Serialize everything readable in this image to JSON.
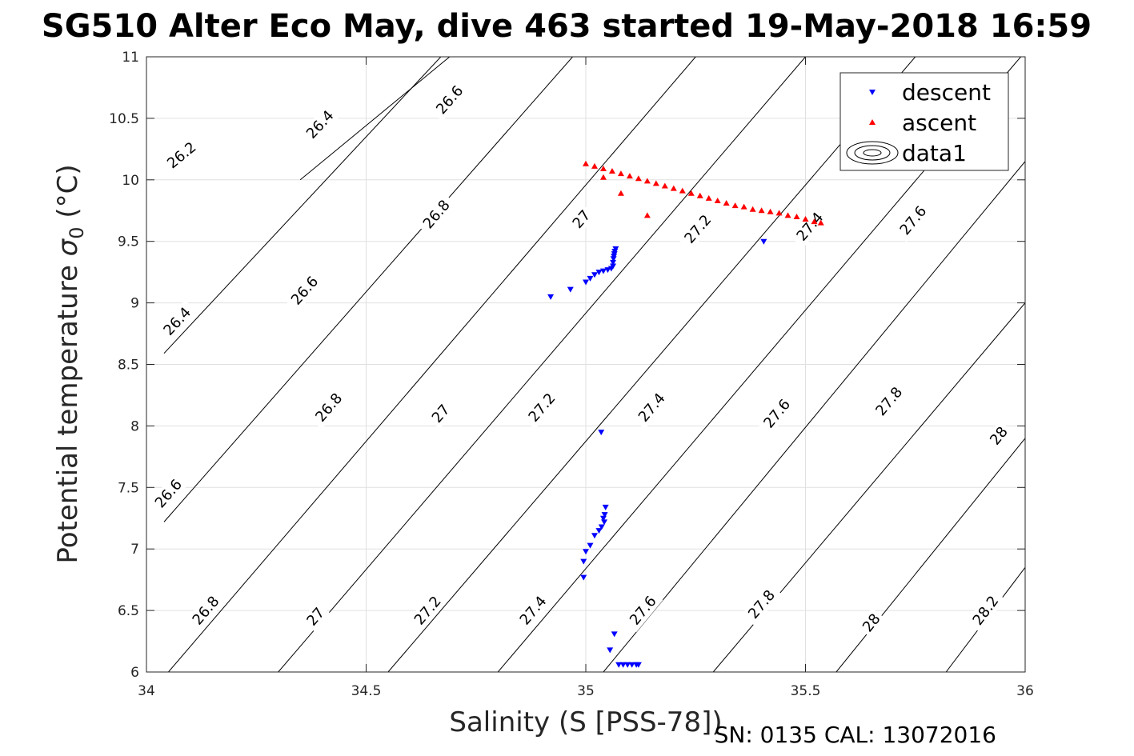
{
  "chart_data": {
    "type": "scatter",
    "title": "SG510 Alter Eco May, dive 463 started 19-May-2018 16:59",
    "xlabel": "Salinity (S [PSS-78])",
    "ylabel_prefix": "Potential temperature ",
    "ylabel_symbol": "σ",
    "ylabel_subscript": "0",
    "ylabel_suffix": " (°C)",
    "footer": "SN: 0135  CAL: 13072016",
    "xlim": [
      34,
      36
    ],
    "ylim": [
      6,
      11
    ],
    "grid": true,
    "legend_position": "top-right",
    "x_ticks": [
      "34",
      "34.5",
      "35",
      "35.5",
      "36"
    ],
    "y_ticks": [
      "6",
      "6.5",
      "7",
      "7.5",
      "8",
      "8.5",
      "9",
      "9.5",
      "10",
      "10.5",
      "11"
    ],
    "legend": [
      "descent",
      "ascent",
      "data1"
    ],
    "colors": {
      "descent": "#0000ff",
      "ascent": "#ff0000",
      "contour": "#000000",
      "grid": "#e0e0e0"
    },
    "series": [
      {
        "name": "descent",
        "marker": "triangle-down",
        "x": [
          34.92,
          34.965,
          35.0,
          35.01,
          35.02,
          35.03,
          35.04,
          35.05,
          35.058,
          35.062,
          35.062,
          35.063,
          35.064,
          35.065,
          35.066,
          35.068,
          35.405,
          35.035,
          35.045,
          35.043,
          35.04,
          35.042,
          35.036,
          35.03,
          35.02,
          35.01,
          35.0,
          34.995,
          34.995,
          35.065,
          35.055,
          35.075,
          35.085,
          35.095,
          35.105,
          35.115,
          35.12
        ],
        "y": [
          9.05,
          9.11,
          9.17,
          9.2,
          9.23,
          9.25,
          9.26,
          9.27,
          9.28,
          9.3,
          9.33,
          9.36,
          9.38,
          9.4,
          9.42,
          9.44,
          9.5,
          7.95,
          7.34,
          7.28,
          7.25,
          7.22,
          7.18,
          7.15,
          7.11,
          7.03,
          6.98,
          6.9,
          6.77,
          6.31,
          6.18,
          6.06,
          6.06,
          6.06,
          6.06,
          6.06,
          6.06
        ]
      },
      {
        "name": "ascent",
        "marker": "triangle-up",
        "x": [
          35.0,
          35.02,
          35.04,
          35.06,
          35.08,
          35.1,
          35.12,
          35.14,
          35.16,
          35.18,
          35.2,
          35.22,
          35.24,
          35.26,
          35.28,
          35.3,
          35.32,
          35.34,
          35.36,
          35.38,
          35.4,
          35.42,
          35.44,
          35.46,
          35.48,
          35.5,
          35.52,
          35.535,
          35.04,
          35.08,
          35.14
        ],
        "y": [
          10.13,
          10.11,
          10.09,
          10.07,
          10.05,
          10.03,
          10.01,
          9.99,
          9.97,
          9.95,
          9.93,
          9.91,
          9.89,
          9.87,
          9.85,
          9.83,
          9.81,
          9.79,
          9.78,
          9.76,
          9.75,
          9.74,
          9.73,
          9.71,
          9.7,
          9.68,
          9.66,
          9.65,
          10.02,
          9.89,
          9.71
        ]
      }
    ],
    "contours": [
      {
        "x": [
          34.35,
          34.69
        ],
        "y": [
          10.0,
          11.0
        ],
        "labels": [
          {
            "text": "26.2",
            "x": 34.08,
            "y": 10.2
          }
        ]
      },
      {
        "x": [
          34.04,
          34.67
        ],
        "y": [
          8.59,
          11.0
        ],
        "labels": [
          {
            "text": "26.4",
            "x": 34.07,
            "y": 8.85
          },
          {
            "text": "26.4",
            "x": 34.395,
            "y": 10.45
          }
        ]
      },
      {
        "x": [
          34.04,
          34.97
        ],
        "y": [
          7.22,
          11.0
        ],
        "labels": [
          {
            "text": "26.6",
            "x": 34.05,
            "y": 7.45
          },
          {
            "text": "26.6",
            "x": 34.36,
            "y": 9.1
          },
          {
            "text": "26.6",
            "x": 34.69,
            "y": 10.65
          }
        ]
      },
      {
        "x": [
          34.05,
          35.25
        ],
        "y": [
          6.0,
          11.0
        ],
        "labels": [
          {
            "text": "26.8",
            "x": 34.135,
            "y": 6.5
          },
          {
            "text": "26.8",
            "x": 34.415,
            "y": 8.15
          },
          {
            "text": "26.8",
            "x": 34.66,
            "y": 9.72
          }
        ]
      },
      {
        "x": [
          34.3,
          35.5
        ],
        "y": [
          6.0,
          11.0
        ],
        "labels": [
          {
            "text": "27",
            "x": 34.385,
            "y": 6.45
          },
          {
            "text": "27",
            "x": 34.67,
            "y": 8.1
          },
          {
            "text": "27",
            "x": 34.99,
            "y": 9.68
          }
        ]
      },
      {
        "x": [
          34.55,
          35.75
        ],
        "y": [
          6.0,
          11.0
        ],
        "labels": [
          {
            "text": "27.2",
            "x": 34.64,
            "y": 6.5
          },
          {
            "text": "27.2",
            "x": 34.9,
            "y": 8.15
          },
          {
            "text": "27.2",
            "x": 35.255,
            "y": 9.6
          }
        ]
      },
      {
        "x": [
          34.8,
          35.99
        ],
        "y": [
          6.0,
          11.0
        ],
        "labels": [
          {
            "text": "27.4",
            "x": 34.88,
            "y": 6.5
          },
          {
            "text": "27.4",
            "x": 35.15,
            "y": 8.15
          },
          {
            "text": "27.4",
            "x": 35.51,
            "y": 9.62
          }
        ]
      },
      {
        "x": [
          35.04,
          36.0
        ],
        "y": [
          6.0,
          10.15
        ],
        "labels": [
          {
            "text": "27.6",
            "x": 35.13,
            "y": 6.5
          },
          {
            "text": "27.6",
            "x": 35.435,
            "y": 8.1
          },
          {
            "text": "27.6",
            "x": 35.745,
            "y": 9.67
          }
        ]
      },
      {
        "x": [
          35.29,
          36.0
        ],
        "y": [
          6.0,
          9.0
        ],
        "labels": [
          {
            "text": "27.8",
            "x": 35.4,
            "y": 6.55
          },
          {
            "text": "27.8",
            "x": 35.69,
            "y": 8.2
          }
        ]
      },
      {
        "x": [
          35.57,
          36.0
        ],
        "y": [
          6.0,
          7.9
        ],
        "labels": [
          {
            "text": "28",
            "x": 35.65,
            "y": 6.4
          },
          {
            "text": "28",
            "x": 35.94,
            "y": 7.92
          }
        ]
      },
      {
        "x": [
          35.82,
          36.0
        ],
        "y": [
          6.0,
          6.85
        ],
        "labels": [
          {
            "text": "28.2",
            "x": 35.91,
            "y": 6.5
          }
        ]
      }
    ]
  }
}
